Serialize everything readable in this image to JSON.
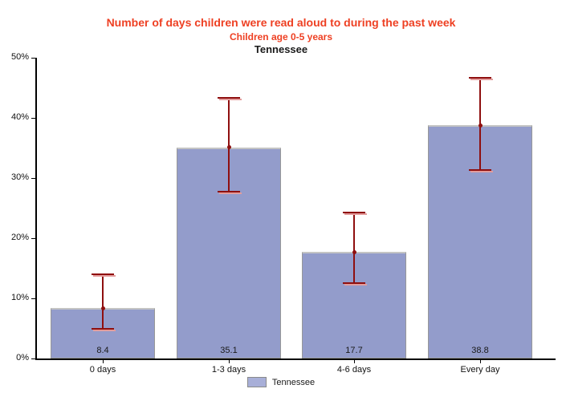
{
  "chart_data": {
    "type": "bar",
    "title": "Number of days children were read aloud to during the past week",
    "subtitle": "Children age 0-5 years",
    "state": "Tennessee",
    "categories": [
      "0 days",
      "1-3 days",
      "4-6 days",
      "Every day"
    ],
    "values": [
      8.4,
      35.1,
      17.7,
      38.8
    ],
    "value_labels": [
      "8.4",
      "35.1",
      "17.7",
      "38.8"
    ],
    "ci_low": [
      5.0,
      27.8,
      12.6,
      31.3
    ],
    "ci_high": [
      14.0,
      43.3,
      24.3,
      46.7
    ],
    "ylim": [
      0,
      50
    ],
    "ytick_step": 10,
    "ytick_labels": [
      "0%",
      "10%",
      "20%",
      "30%",
      "40%",
      "50%"
    ],
    "grid": false,
    "legend_position": "bottom",
    "legend": [
      {
        "label": "Tennessee",
        "color": "#939CCB"
      }
    ],
    "colors": {
      "bar_fill": "#939CCB",
      "bar_border": "#989898",
      "bar_border_top": "#c4c4c4",
      "error_bar": "#8F0F0F",
      "error_cap_shadow": "#E39C9C",
      "title": "#EE4023",
      "axis": "#000000",
      "legend_fill": "#A8AFD8"
    }
  }
}
